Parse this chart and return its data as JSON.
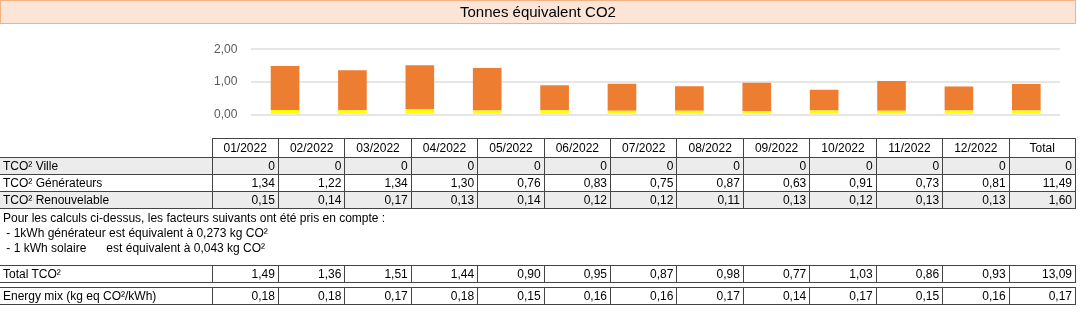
{
  "chart_data": [
    {
      "type": "bar",
      "title": "Tonnes équivalent CO2",
      "stacked": true,
      "categories": [
        null,
        null,
        null,
        null,
        null,
        null,
        null,
        null,
        null,
        null,
        null,
        null
      ],
      "series": [
        {
          "color": "#ffff00",
          "values": [
            0.15,
            0.14,
            0.17,
            0.13,
            0.14,
            0.12,
            0.12,
            0.11,
            0.13,
            0.12,
            0.13,
            0.13
          ]
        },
        {
          "color": "#ed7d31",
          "values": [
            1.34,
            1.22,
            1.34,
            1.3,
            0.76,
            0.83,
            0.75,
            0.87,
            0.63,
            0.91,
            0.73,
            0.81
          ]
        }
      ],
      "ylim": [
        0,
        2
      ],
      "yticks": [
        {
          "value": 0,
          "label": "0,00"
        },
        {
          "value": 1,
          "label": "1,00"
        },
        {
          "value": 2,
          "label": "2,00"
        }
      ],
      "grid": "y",
      "legend": false,
      "tick_labels": "y"
    },
    {
      "type": "other",
      "categories": [
        "01/2022",
        "02/2022",
        "03/2022",
        "04/2022",
        "05/2022",
        "06/2022",
        "07/2022",
        "08/2022",
        "09/2022",
        "10/2022",
        "11/2022",
        "12/2022",
        "Total"
      ],
      "series": [
        {
          "name": "TCO² Ville",
          "values": [
            0,
            0,
            0,
            0,
            0,
            0,
            0,
            0,
            0,
            0,
            0,
            0,
            0
          ],
          "value_labels": [
            "0",
            "0",
            "0",
            "0",
            "0",
            "0",
            "0",
            "0",
            "0",
            "0",
            "0",
            "0",
            "0"
          ]
        },
        {
          "name": "TCO² Générateurs",
          "values": [
            1.34,
            1.22,
            1.34,
            1.3,
            0.76,
            0.83,
            0.75,
            0.87,
            0.63,
            0.91,
            0.73,
            0.81,
            11.49
          ],
          "value_labels": [
            "1,34",
            "1,22",
            "1,34",
            "1,30",
            "0,76",
            "0,83",
            "0,75",
            "0,87",
            "0,63",
            "0,91",
            "0,73",
            "0,81",
            "11,49"
          ]
        },
        {
          "name": "TCO² Renouvelable",
          "values": [
            0.15,
            0.14,
            0.17,
            0.13,
            0.14,
            0.12,
            0.12,
            0.11,
            0.13,
            0.12,
            0.13,
            0.13,
            1.6
          ],
          "value_labels": [
            "0,15",
            "0,14",
            "0,17",
            "0,13",
            "0,14",
            "0,12",
            "0,12",
            "0,11",
            "0,13",
            "0,12",
            "0,13",
            "0,13",
            "1,60"
          ]
        },
        {
          "name": "Total TCO²",
          "values": [
            1.49,
            1.36,
            1.51,
            1.44,
            0.9,
            0.95,
            0.87,
            0.98,
            0.77,
            1.03,
            0.86,
            0.93,
            13.09
          ],
          "value_labels": [
            "1,49",
            "1,36",
            "1,51",
            "1,44",
            "0,90",
            "0,95",
            "0,87",
            "0,98",
            "0,77",
            "1,03",
            "0,86",
            "0,93",
            "13,09"
          ]
        },
        {
          "name": "Energy mix (kg eq CO²/kWh)",
          "values": [
            0.18,
            0.18,
            0.17,
            0.18,
            0.15,
            0.16,
            0.16,
            0.17,
            0.14,
            0.17,
            0.15,
            0.16,
            0.17
          ],
          "value_labels": [
            "0,18",
            "0,18",
            "0,17",
            "0,18",
            "0,15",
            "0,16",
            "0,16",
            "0,17",
            "0,14",
            "0,17",
            "0,15",
            "0,16",
            "0,17"
          ]
        }
      ],
      "annotations": [
        "Pour les calculs ci-dessus, les facteurs suivants ont été pris en compte :",
        " - 1kWh générateur est équivalent à 0,273 kg CO²",
        " - 1 kWh solaire      est équivalent à 0,043 kg CO²"
      ]
    }
  ]
}
